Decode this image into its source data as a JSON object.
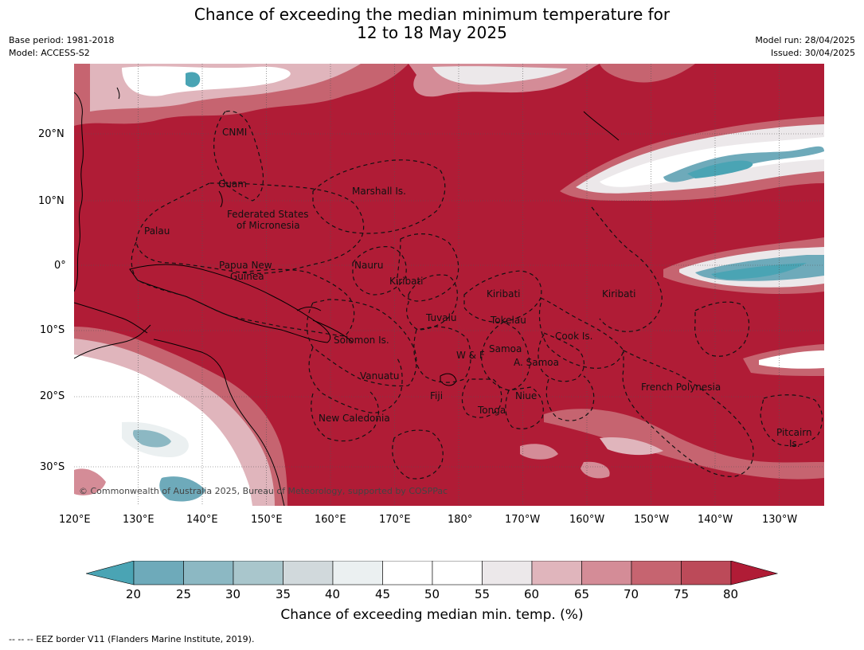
{
  "title": {
    "line1": "Chance of exceeding the median minimum temperature for",
    "line2": "12 to 18 May 2025"
  },
  "meta": {
    "base_period": "Base period: 1981-2018",
    "model": "Model: ACCESS-S2",
    "model_run": "Model run: 28/04/2025",
    "issued": "Issued: 30/04/2025"
  },
  "map": {
    "ocean_color": "#b01c36",
    "lon_ticks": [
      "120°E",
      "130°E",
      "140°E",
      "150°E",
      "160°E",
      "170°E",
      "180°",
      "170°W",
      "160°W",
      "150°W",
      "140°W",
      "130°W"
    ],
    "lat_ticks": [
      "20°N",
      "10°N",
      "0°",
      "10°S",
      "20°S",
      "30°S"
    ],
    "regions": {
      "cnmi": "CNMI",
      "guam": "Guam",
      "marshall": "Marshall Is.",
      "fsm_line1": "Federated States",
      "fsm_line2": "of Micronesia",
      "palau": "Palau",
      "png_line1": "Papua New",
      "png_line2": "Guinea",
      "nauru": "Nauru",
      "kiribati_west": "Kiribati",
      "kiribati_central": "Kiribati",
      "kiribati_east": "Kiribati",
      "tuvalu": "Tuvalu",
      "tokelau": "Tokelau",
      "cook": "Cook Is.",
      "solomon": "Solomon Is.",
      "wf": "W & F",
      "samoa": "Samoa",
      "asamoa": "A. Samoa",
      "vanuatu": "Vanuatu",
      "fiji": "Fiji",
      "niue": "Niue",
      "tonga": "Tonga",
      "french_polynesia": "French Polynesia",
      "new_caledonia": "New Caledonia",
      "pitcairn_line1": "Pitcairn",
      "pitcairn_line2": "Is."
    },
    "copyright": "© Commonwealth of Australia 2025, Bureau of Meteorology, supported by COSPPac"
  },
  "colorbar": {
    "title": "Chance of exceeding median min. temp. (%)",
    "ticks": [
      "20",
      "25",
      "30",
      "35",
      "40",
      "45",
      "50",
      "55",
      "60",
      "65",
      "70",
      "75",
      "80"
    ],
    "colors": [
      "#4aa4b4",
      "#6eaaba",
      "#8cb8c3",
      "#a9c6cc",
      "#d1d9dc",
      "#ebf0f1",
      "#ffffff",
      "#ffffff",
      "#ece8ea",
      "#e0b5bc",
      "#d48c97",
      "#c66470",
      "#bc4a59",
      "#b01c36"
    ]
  },
  "footnote": "--  --  -- EEZ border V11 (Flanders Marine Institute, 2019)."
}
